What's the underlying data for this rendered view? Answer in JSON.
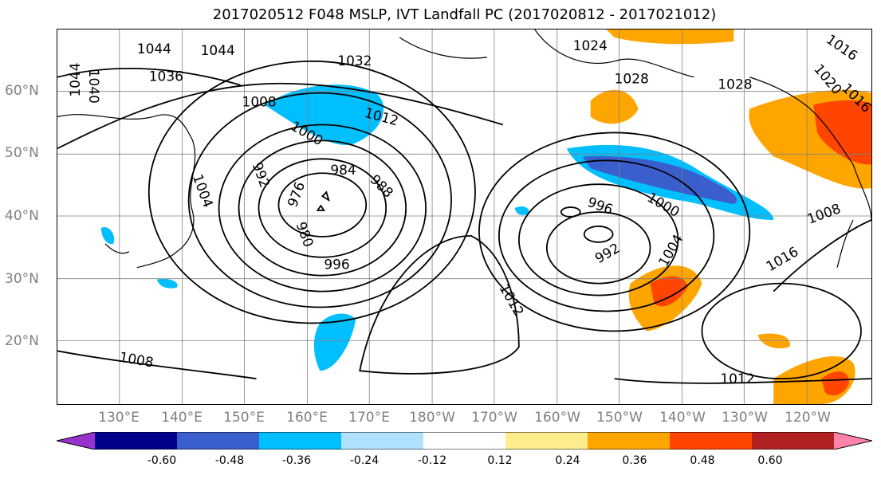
{
  "title": "2017020512 F048 MSLP, IVT Landfall PC (2017020812 - 2017021012)",
  "lat_labels": [
    "60°N",
    "50°N",
    "40°N",
    "30°N",
    "20°N"
  ],
  "lon_labels": [
    "130°E",
    "140°E",
    "150°E",
    "160°E",
    "170°E",
    "180°W",
    "170°W",
    "160°W",
    "150°W",
    "140°W",
    "130°W",
    "120°W"
  ],
  "isobar_labels": [
    "1044",
    "1044",
    "1040",
    "1044",
    "1036",
    "1032",
    "1024",
    "1020",
    "1016",
    "1028",
    "1028",
    "1008",
    "1012",
    "1000",
    "992",
    "984",
    "988",
    "976",
    "980",
    "1004",
    "996",
    "996",
    "1000",
    "992",
    "1004",
    "1012",
    "1016",
    "1008",
    "1008",
    "1012",
    "1016"
  ],
  "colorbar": {
    "ticks": [
      "-0.60",
      "-0.48",
      "-0.36",
      "-0.24",
      "-0.12",
      "0.12",
      "0.24",
      "0.36",
      "0.48",
      "0.60"
    ],
    "colors": [
      "#9932cc",
      "#00008b",
      "#3a5fcd",
      "#00bfff",
      "#b0e2ff",
      "#ffffff",
      "#ffec8b",
      "#ffa500",
      "#ff4500",
      "#b22222",
      "#ff82ab"
    ]
  }
}
